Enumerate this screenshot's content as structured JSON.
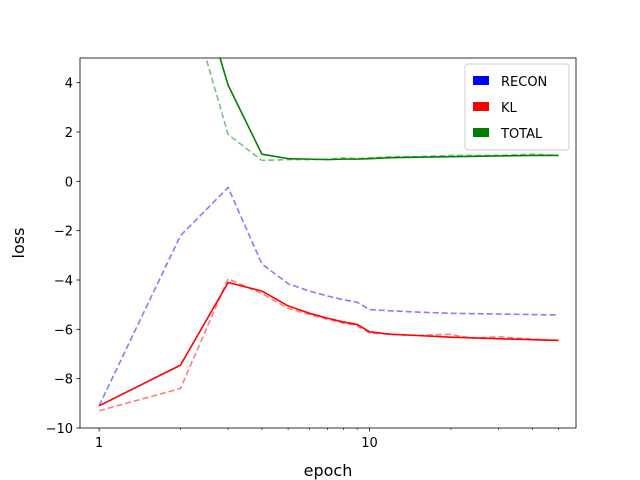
{
  "chart_data": {
    "type": "line",
    "title": "",
    "xlabel": "epoch",
    "ylabel": "loss",
    "xscale": "log",
    "xlim": [
      0.85,
      58
    ],
    "ylim": [
      -10,
      5
    ],
    "grid": false,
    "legend_placement": "top-right",
    "x_ticks": [
      1,
      10
    ],
    "x_tick_labels": [
      "1",
      "10"
    ],
    "y_ticks": [
      -10,
      -8,
      -6,
      -4,
      -2,
      0,
      2,
      4
    ],
    "y_tick_labels": [
      "−10",
      "−8",
      "−6",
      "−4",
      "−2",
      "0",
      "2",
      "4"
    ],
    "legend": [
      {
        "label": "RECON",
        "color": "#0000ff"
      },
      {
        "label": "KL",
        "color": "#ff0000"
      },
      {
        "label": "TOTAL",
        "color": "#008000"
      }
    ],
    "series": [
      {
        "legend_index": 0,
        "color": "#0000ff",
        "style": "dashed",
        "opacity": 0.5,
        "x": [
          1,
          2,
          3,
          4,
          5,
          6,
          7,
          8,
          9,
          10,
          12,
          15,
          20,
          30,
          40,
          50
        ],
        "y": [
          -9.1,
          -2.2,
          -0.25,
          -3.35,
          -4.15,
          -4.45,
          -4.65,
          -4.8,
          -4.9,
          -5.2,
          -5.25,
          -5.3,
          -5.35,
          -5.38,
          -5.4,
          -5.42
        ]
      },
      {
        "legend_index": 1,
        "color": "#ff0000",
        "style": "dashed",
        "opacity": 0.5,
        "x": [
          1,
          2,
          3,
          4,
          5,
          6,
          7,
          8,
          9,
          10,
          12,
          15,
          20,
          22,
          25,
          30,
          40,
          50
        ],
        "y": [
          -9.3,
          -8.4,
          -3.95,
          -4.55,
          -5.15,
          -5.4,
          -5.6,
          -5.75,
          -5.85,
          -6.15,
          -6.2,
          -6.25,
          -6.2,
          -6.3,
          -6.35,
          -6.3,
          -6.4,
          -6.45
        ]
      },
      {
        "legend_index": 1,
        "color": "#ff0000",
        "style": "solid",
        "opacity": 1.0,
        "x": [
          1,
          2,
          3,
          4,
          5,
          6,
          7,
          8,
          9,
          10,
          12,
          15,
          20,
          30,
          40,
          50
        ],
        "y": [
          -9.1,
          -7.45,
          -4.1,
          -4.45,
          -5.05,
          -5.35,
          -5.55,
          -5.7,
          -5.8,
          -6.1,
          -6.2,
          -6.25,
          -6.32,
          -6.38,
          -6.42,
          -6.45
        ]
      },
      {
        "legend_index": 2,
        "color": "#008000",
        "style": "dashed",
        "opacity": 0.5,
        "x": [
          2.5,
          3,
          4,
          5,
          6,
          7,
          8,
          9,
          10,
          12,
          15,
          20,
          30,
          40,
          50
        ],
        "y": [
          4.9,
          1.9,
          0.85,
          0.88,
          0.88,
          0.9,
          0.95,
          0.92,
          0.95,
          1.0,
          1.0,
          1.05,
          1.05,
          1.1,
          1.05
        ]
      },
      {
        "legend_index": 2,
        "color": "#008000",
        "style": "solid",
        "opacity": 1.0,
        "x": [
          2.8,
          3,
          4,
          5,
          6,
          7,
          8,
          9,
          10,
          12,
          15,
          20,
          30,
          40,
          50
        ],
        "y": [
          5.0,
          3.9,
          1.1,
          0.92,
          0.9,
          0.88,
          0.9,
          0.9,
          0.92,
          0.96,
          0.98,
          1.0,
          1.03,
          1.05,
          1.05
        ]
      }
    ]
  }
}
